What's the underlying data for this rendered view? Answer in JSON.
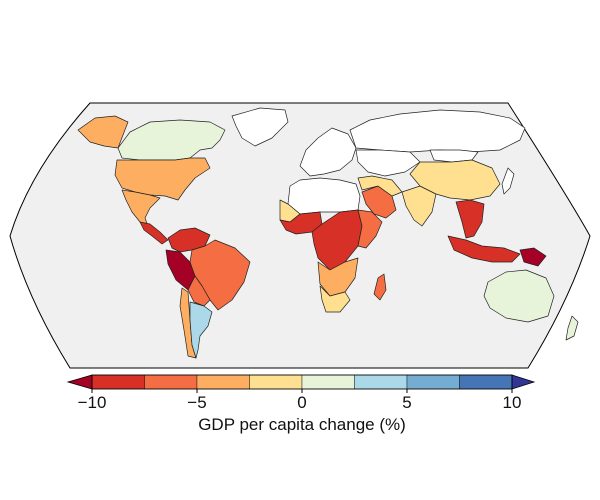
{
  "map": {
    "projection": "robinson",
    "ocean_color": "#f0f0f0",
    "outline_color": "#000000",
    "no_data_color": "#ffffff"
  },
  "colorbar": {
    "title": "GDP per capita change (%)",
    "range": [
      -10,
      10
    ],
    "extend": "both",
    "ticks": [
      {
        "value": -10,
        "label": "−10"
      },
      {
        "value": -5,
        "label": "−5"
      },
      {
        "value": 0,
        "label": "0"
      },
      {
        "value": 5,
        "label": "5"
      },
      {
        "value": 10,
        "label": "10"
      }
    ],
    "bins": [
      {
        "from": -10,
        "to": -7.5,
        "color": "#d73027"
      },
      {
        "from": -7.5,
        "to": -5,
        "color": "#f46d43"
      },
      {
        "from": -5,
        "to": -2.5,
        "color": "#fdae61"
      },
      {
        "from": -2.5,
        "to": 0,
        "color": "#fee090"
      },
      {
        "from": 0,
        "to": 2.5,
        "color": "#e8f4da"
      },
      {
        "from": 2.5,
        "to": 5,
        "color": "#abd9e9"
      },
      {
        "from": 5,
        "to": 7.5,
        "color": "#74add1"
      },
      {
        "from": 7.5,
        "to": 10,
        "color": "#4575b4"
      }
    ],
    "under_color": "#a50026",
    "over_color": "#313695"
  },
  "regions": [
    {
      "name": "usa",
      "color": "#fdae61"
    },
    {
      "name": "canada",
      "color": "#e8f4da"
    },
    {
      "name": "alaska",
      "color": "#fdae61"
    },
    {
      "name": "greenland",
      "color": "#ffffff"
    },
    {
      "name": "mexico",
      "color": "#fdae61"
    },
    {
      "name": "central-america",
      "color": "#d73027"
    },
    {
      "name": "colombia-venezuela",
      "color": "#d73027"
    },
    {
      "name": "peru",
      "color": "#a50026"
    },
    {
      "name": "brazil",
      "color": "#f46d43"
    },
    {
      "name": "bolivia-paraguay",
      "color": "#f46d43"
    },
    {
      "name": "chile",
      "color": "#fdae61"
    },
    {
      "name": "argentina",
      "color": "#abd9e9"
    },
    {
      "name": "europe",
      "color": "#ffffff"
    },
    {
      "name": "russia",
      "color": "#ffffff"
    },
    {
      "name": "north-africa",
      "color": "#ffffff"
    },
    {
      "name": "west-africa-sahel",
      "color": "#fee090"
    },
    {
      "name": "west-africa-coast",
      "color": "#d73027"
    },
    {
      "name": "central-africa",
      "color": "#d73027"
    },
    {
      "name": "east-africa",
      "color": "#f46d43"
    },
    {
      "name": "southern-africa",
      "color": "#fdae61"
    },
    {
      "name": "south-africa",
      "color": "#fee090"
    },
    {
      "name": "madagascar",
      "color": "#f46d43"
    },
    {
      "name": "arabia",
      "color": "#f46d43"
    },
    {
      "name": "middle-east",
      "color": "#fee090"
    },
    {
      "name": "central-asia",
      "color": "#ffffff"
    },
    {
      "name": "india",
      "color": "#fee090"
    },
    {
      "name": "china",
      "color": "#fee090"
    },
    {
      "name": "mongolia",
      "color": "#ffffff"
    },
    {
      "name": "southeast-asia",
      "color": "#d73027"
    },
    {
      "name": "indonesia",
      "color": "#d73027"
    },
    {
      "name": "new-guinea",
      "color": "#a50026"
    },
    {
      "name": "japan",
      "color": "#ffffff"
    },
    {
      "name": "australia",
      "color": "#e8f4da"
    },
    {
      "name": "new-zealand",
      "color": "#e8f4da"
    }
  ]
}
